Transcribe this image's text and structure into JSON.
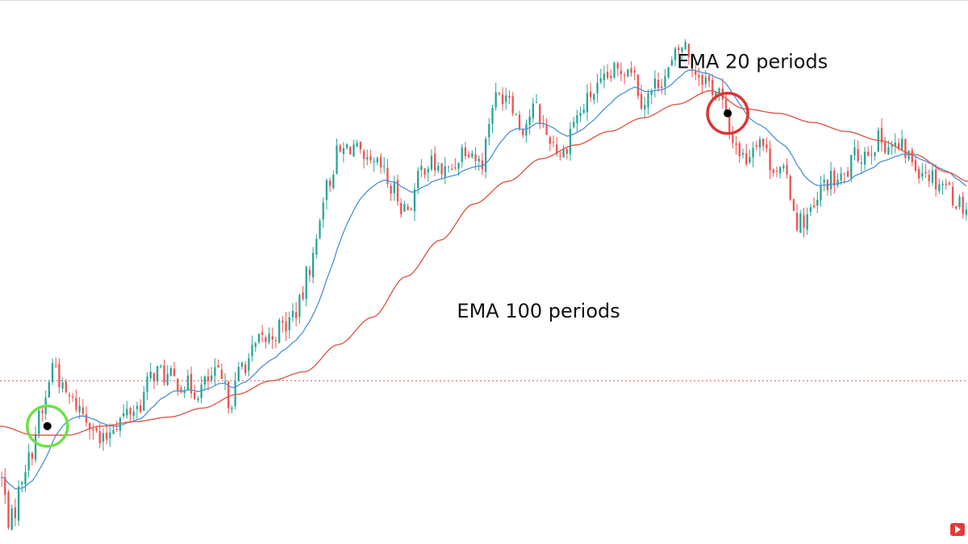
{
  "chart_data": {
    "type": "candlestick",
    "annotations": [
      {
        "text": "EMA 20 periods",
        "x": 200,
        "y": 1.05
      },
      {
        "text": "EMA 100 periods",
        "x": 135,
        "y": 0.5
      }
    ],
    "reference_line": {
      "y": 0.36,
      "style": "dotted",
      "color": "#e04040"
    },
    "crossovers": [
      {
        "kind": "bullish",
        "x": 14,
        "y": 0.26,
        "ring_color": "#6fe04a"
      },
      {
        "kind": "bearish",
        "x": 215,
        "y": 0.95,
        "ring_color": "#e03232"
      }
    ],
    "colors": {
      "up": "#27a69a",
      "down": "#ef5350",
      "ema_fast": "#4a90d9",
      "ema_slow": "#e05a4a",
      "background": "#ffffff"
    },
    "xlim": [
      0,
      286
    ],
    "ylim": [
      0,
      1.2
    ],
    "series": [
      {
        "name": "EMA 20 periods",
        "period": 20
      },
      {
        "name": "EMA 100 periods",
        "period": 100
      }
    ],
    "price_anchors": [
      [
        0,
        0.15
      ],
      [
        3,
        0.05
      ],
      [
        8,
        0.18
      ],
      [
        12,
        0.28
      ],
      [
        16,
        0.4
      ],
      [
        19,
        0.33
      ],
      [
        22,
        0.31
      ],
      [
        26,
        0.28
      ],
      [
        30,
        0.22
      ],
      [
        34,
        0.27
      ],
      [
        40,
        0.3
      ],
      [
        46,
        0.38
      ],
      [
        52,
        0.36
      ],
      [
        58,
        0.34
      ],
      [
        64,
        0.37
      ],
      [
        68,
        0.32
      ],
      [
        72,
        0.4
      ],
      [
        78,
        0.45
      ],
      [
        84,
        0.48
      ],
      [
        88,
        0.52
      ],
      [
        92,
        0.62
      ],
      [
        96,
        0.78
      ],
      [
        100,
        0.86
      ],
      [
        104,
        0.88
      ],
      [
        108,
        0.83
      ],
      [
        112,
        0.83
      ],
      [
        116,
        0.78
      ],
      [
        120,
        0.74
      ],
      [
        126,
        0.84
      ],
      [
        132,
        0.82
      ],
      [
        138,
        0.88
      ],
      [
        142,
        0.84
      ],
      [
        146,
        0.98
      ],
      [
        150,
        1.0
      ],
      [
        154,
        0.92
      ],
      [
        158,
        0.96
      ],
      [
        162,
        0.9
      ],
      [
        166,
        0.86
      ],
      [
        170,
        0.94
      ],
      [
        176,
        1.0
      ],
      [
        182,
        1.04
      ],
      [
        186,
        1.06
      ],
      [
        190,
        0.98
      ],
      [
        196,
        1.03
      ],
      [
        202,
        1.1
      ],
      [
        206,
        1.04
      ],
      [
        212,
        1.0
      ],
      [
        216,
        0.9
      ],
      [
        220,
        0.85
      ],
      [
        224,
        0.9
      ],
      [
        228,
        0.84
      ],
      [
        232,
        0.81
      ],
      [
        236,
        0.71
      ],
      [
        240,
        0.73
      ],
      [
        244,
        0.8
      ],
      [
        248,
        0.8
      ],
      [
        254,
        0.86
      ],
      [
        260,
        0.89
      ],
      [
        266,
        0.87
      ],
      [
        272,
        0.83
      ],
      [
        278,
        0.8
      ],
      [
        284,
        0.75
      ],
      [
        286,
        0.74
      ]
    ],
    "ema_slow_anchors": [
      [
        0,
        0.26
      ],
      [
        10,
        0.24
      ],
      [
        20,
        0.24
      ],
      [
        30,
        0.26
      ],
      [
        40,
        0.27
      ],
      [
        50,
        0.28
      ],
      [
        60,
        0.3
      ],
      [
        70,
        0.33
      ],
      [
        80,
        0.36
      ],
      [
        90,
        0.38
      ],
      [
        100,
        0.44
      ],
      [
        110,
        0.5
      ],
      [
        120,
        0.59
      ],
      [
        130,
        0.67
      ],
      [
        140,
        0.75
      ],
      [
        150,
        0.8
      ],
      [
        160,
        0.85
      ],
      [
        170,
        0.88
      ],
      [
        180,
        0.91
      ],
      [
        190,
        0.94
      ],
      [
        200,
        0.97
      ],
      [
        210,
        1.0
      ],
      [
        220,
        0.96
      ],
      [
        230,
        0.95
      ],
      [
        240,
        0.93
      ],
      [
        250,
        0.91
      ],
      [
        260,
        0.89
      ],
      [
        270,
        0.86
      ],
      [
        280,
        0.82
      ],
      [
        286,
        0.8
      ]
    ]
  }
}
